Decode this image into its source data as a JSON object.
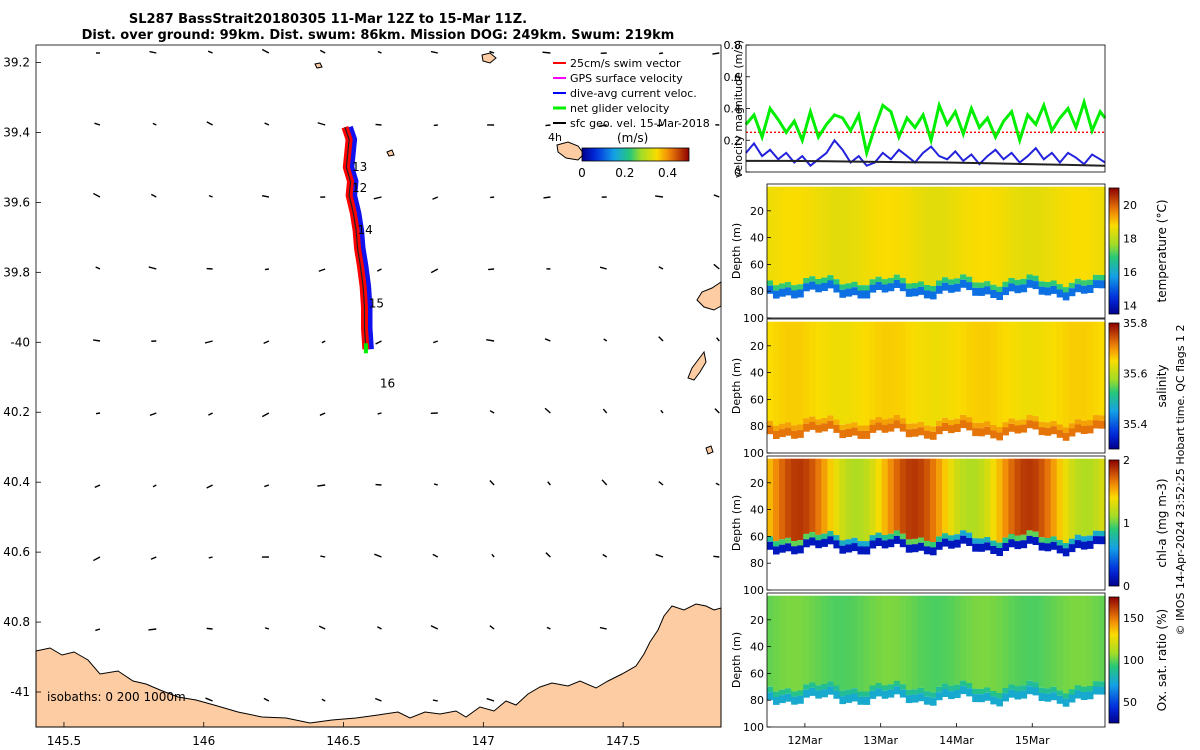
{
  "chart_data": {
    "type": "scatter",
    "title_line1": "SL287 BassStrait20180305 11-Mar 12Z to 15-Mar 11Z.",
    "title_line2": "Dist. over ground: 99km. Dist. swum: 86km. Mission DOG: 249km. Swum: 219km",
    "map": {
      "xlim": [
        145.4,
        147.85
      ],
      "ylim": [
        -41.1,
        -39.15
      ],
      "x_ticks": [
        145.5,
        146,
        146.5,
        147,
        147.5
      ],
      "x_tick_labels": [
        "145.5",
        "146",
        "146.5",
        "147",
        "147.5"
      ],
      "y_ticks": [
        -39.2,
        -39.4,
        -39.6,
        -39.8,
        -40.0,
        -40.2,
        -40.4,
        -40.6,
        -40.8,
        -41.0
      ],
      "y_tick_labels": [
        "39.2",
        "39.4",
        "39.6",
        "39.8",
        "-40",
        "40.2",
        "40.4",
        "40.6",
        "40.8",
        "-41"
      ],
      "legend": [
        {
          "label": "25cm/s swim vector",
          "color": "#ff0000"
        },
        {
          "label": "GPS surface velocity",
          "color": "#ff00ff"
        },
        {
          "label": "dive-avg current veloc.",
          "color": "#0000ff"
        },
        {
          "label": "net glider velocity",
          "color": "#00ee00"
        },
        {
          "label": "sfc geo. vel. 15-Mar-2018",
          "color": "#000000"
        }
      ],
      "ref_arrow_label": "4h",
      "colorbar_unit": "(m/s)",
      "colorbar_ticks": [
        0,
        0.2,
        0.4
      ],
      "colorbar_tick_labels": [
        "0",
        "0.2",
        "0.4"
      ],
      "colorbar_range": [
        0,
        0.5
      ],
      "day_labels": [
        {
          "text": "13",
          "lon": 146.53,
          "lat": -39.51
        },
        {
          "text": "12",
          "lon": 146.53,
          "lat": -39.57
        },
        {
          "text": "14",
          "lon": 146.55,
          "lat": -39.69
        },
        {
          "text": "15",
          "lon": 146.59,
          "lat": -39.9
        },
        {
          "text": "16",
          "lon": 146.63,
          "lat": -40.13
        }
      ],
      "track": [
        [
          146.505,
          -39.385
        ],
        [
          146.52,
          -39.42
        ],
        [
          146.515,
          -39.46
        ],
        [
          146.51,
          -39.5
        ],
        [
          146.525,
          -39.54
        ],
        [
          146.52,
          -39.58
        ],
        [
          146.535,
          -39.63
        ],
        [
          146.545,
          -39.68
        ],
        [
          146.55,
          -39.73
        ],
        [
          146.56,
          -39.78
        ],
        [
          146.57,
          -39.84
        ],
        [
          146.575,
          -39.9
        ],
        [
          146.575,
          -39.96
        ],
        [
          146.58,
          -40.02
        ]
      ],
      "isobath_label": "isobaths: 0   200  1000m"
    },
    "velocity_panel": {
      "ylabel": "velocity magnitude (m/s)",
      "ylim": [
        0,
        0.8
      ],
      "y_ticks": [
        0,
        0.2,
        0.4,
        0.6,
        0.8
      ],
      "y_tick_labels": [
        "0",
        "0.2",
        "0.4",
        "0.6",
        "0.8"
      ],
      "xlim": [
        11.5,
        15.96
      ],
      "swim_ref": 0.25,
      "series": [
        {
          "name": "net glider velocity",
          "color": "#00ee00",
          "x": [
            11.5,
            11.6,
            11.7,
            11.8,
            11.9,
            12.0,
            12.1,
            12.2,
            12.3,
            12.4,
            12.5,
            12.6,
            12.7,
            12.8,
            12.9,
            13.0,
            13.1,
            13.2,
            13.3,
            13.4,
            13.5,
            13.6,
            13.7,
            13.8,
            13.9,
            14.0,
            14.1,
            14.2,
            14.3,
            14.4,
            14.5,
            14.6,
            14.7,
            14.8,
            14.9,
            15.0,
            15.1,
            15.2,
            15.3,
            15.4,
            15.5,
            15.6,
            15.7,
            15.8,
            15.9,
            15.96
          ],
          "values": [
            0.3,
            0.36,
            0.22,
            0.4,
            0.33,
            0.25,
            0.32,
            0.2,
            0.38,
            0.22,
            0.3,
            0.36,
            0.34,
            0.26,
            0.36,
            0.12,
            0.28,
            0.42,
            0.38,
            0.22,
            0.34,
            0.28,
            0.36,
            0.2,
            0.42,
            0.3,
            0.38,
            0.24,
            0.4,
            0.28,
            0.34,
            0.22,
            0.32,
            0.38,
            0.2,
            0.36,
            0.3,
            0.42,
            0.26,
            0.34,
            0.4,
            0.28,
            0.44,
            0.26,
            0.38,
            0.34
          ]
        },
        {
          "name": "dive-avg current veloc.",
          "color": "#2222dd",
          "x": [
            11.5,
            11.6,
            11.7,
            11.8,
            11.9,
            12.0,
            12.1,
            12.2,
            12.3,
            12.4,
            12.5,
            12.6,
            12.7,
            12.8,
            12.9,
            13.0,
            13.1,
            13.2,
            13.3,
            13.4,
            13.5,
            13.6,
            13.7,
            13.8,
            13.9,
            14.0,
            14.1,
            14.2,
            14.3,
            14.4,
            14.5,
            14.6,
            14.7,
            14.8,
            14.9,
            15.0,
            15.1,
            15.2,
            15.3,
            15.4,
            15.5,
            15.6,
            15.7,
            15.8,
            15.9,
            15.96
          ],
          "values": [
            0.12,
            0.18,
            0.1,
            0.14,
            0.08,
            0.12,
            0.06,
            0.1,
            0.04,
            0.08,
            0.12,
            0.2,
            0.14,
            0.06,
            0.1,
            0.04,
            0.06,
            0.12,
            0.08,
            0.14,
            0.1,
            0.06,
            0.12,
            0.16,
            0.1,
            0.08,
            0.13,
            0.07,
            0.11,
            0.05,
            0.1,
            0.14,
            0.08,
            0.12,
            0.06,
            0.1,
            0.15,
            0.08,
            0.12,
            0.06,
            0.12,
            0.09,
            0.05,
            0.11,
            0.08,
            0.06
          ]
        },
        {
          "name": "sfc geo. vel. 15-Mar-2018",
          "color": "#222222",
          "x": [
            11.5,
            12.0,
            12.5,
            13.0,
            13.5,
            14.0,
            14.5,
            15.0,
            15.5,
            15.96
          ],
          "values": [
            0.07,
            0.07,
            0.068,
            0.065,
            0.062,
            0.06,
            0.055,
            0.05,
            0.045,
            0.04
          ]
        }
      ]
    },
    "depth_panels": [
      {
        "var": "temperature",
        "ylabel": "Depth (m)",
        "cb_label": "temperature (°C)",
        "cb_range": [
          13.5,
          21
        ],
        "cb_ticks": [
          14,
          16,
          18,
          20
        ],
        "cb_tick_labels": [
          "14",
          "16",
          "18",
          "20"
        ],
        "surface_value": 18.6,
        "deep_value": 15.2,
        "mld": 72
      },
      {
        "var": "salinity",
        "ylabel": "Depth (m)",
        "cb_label": "salinity",
        "cb_range": [
          35.3,
          35.8
        ],
        "cb_ticks": [
          35.4,
          35.6,
          35.8
        ],
        "cb_tick_labels": [
          "35.4",
          "35.6",
          "35.8"
        ],
        "surface_value": 35.65,
        "deep_value": 35.72,
        "mld": 76
      },
      {
        "var": "chla",
        "ylabel": "Depth (m)",
        "cb_label": "chl-a (mg m-3)",
        "cb_range": [
          0,
          2
        ],
        "cb_ticks": [
          0,
          1,
          2
        ],
        "cb_tick_labels": [
          "0",
          "1",
          "2"
        ],
        "surface_value": 1.5,
        "deep_value": 0.15,
        "mld": 60
      },
      {
        "var": "oxygen",
        "ylabel": "Depth (m)",
        "cb_label": "Ox. sat. ratio (%)",
        "cb_range": [
          25,
          175
        ],
        "cb_ticks": [
          50,
          100,
          150
        ],
        "cb_tick_labels": [
          "50",
          "100",
          "150"
        ],
        "surface_value": 100,
        "deep_value": 75,
        "mld": 70
      }
    ],
    "depth_y_ticks": [
      20,
      40,
      60,
      80,
      100
    ],
    "depth_y_tick_labels": [
      "20",
      "40",
      "60",
      "80",
      "100"
    ],
    "time_ticks": [
      12,
      13,
      14,
      15
    ],
    "time_tick_labels": [
      "12Mar",
      "13Mar",
      "14Mar",
      "15Mar"
    ],
    "side_note": "© IMOS 14-Apr-2024 23:52:25 Hobart time. QC flags 1  2"
  }
}
